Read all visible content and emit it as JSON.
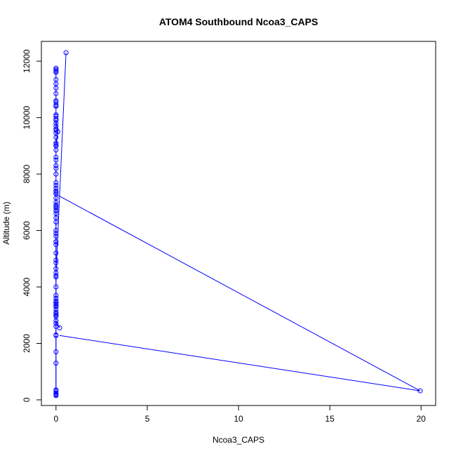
{
  "chart_data": {
    "type": "scatter",
    "title": "ATOM4 Southbound Ncoa3_CAPS",
    "xlabel": "Ncoa3_CAPS",
    "ylabel": "Altitude (m)",
    "xlim": [
      -0.8,
      20.8
    ],
    "ylim": [
      -200,
      12700
    ],
    "xticks": [
      0,
      5,
      10,
      15,
      20
    ],
    "yticks": [
      0,
      2000,
      4000,
      6000,
      8000,
      10000,
      12000
    ],
    "grid": false,
    "legend": "none",
    "colors": {
      "series": "#0000ff",
      "axis": "#000000",
      "background": "#ffffff"
    },
    "series": [
      {
        "marker": "open-circle",
        "line": true,
        "x": [
          0.0,
          0.0,
          0.0,
          0.0,
          0.0,
          0.0,
          0.0,
          0.0,
          0.0,
          0.0,
          0.0,
          0.0,
          0.0,
          0.0,
          0.0,
          0.0,
          0.0,
          0.0,
          0.0,
          0.0,
          0.0,
          0.0,
          0.0,
          0.0,
          0.0,
          0.0,
          0.2,
          0.0,
          0.0,
          0.0,
          0.0,
          0.0,
          0.0,
          0.0,
          0.0,
          0.0,
          0.0,
          0.0,
          0.0,
          0.0,
          0.0,
          0.0,
          0.0,
          0.0,
          0.0,
          0.0,
          0.0,
          0.0,
          0.0,
          0.0,
          0.0,
          0.0,
          0.0,
          0.0,
          0.0,
          0.0,
          0.0,
          0.0,
          0.0,
          0.0,
          0.0,
          0.0,
          0.0,
          0.0,
          0.0,
          0.0,
          0.0,
          0.0,
          0.0,
          0.0,
          0.0,
          0.0,
          0.0,
          0.0,
          0.0,
          0.0,
          0.0,
          0.0,
          0.0,
          0.0,
          0.0,
          0.0,
          0.0,
          0.0,
          0.0,
          0.0,
          0.1,
          0.0,
          0.0,
          0.0,
          0.0,
          0.0,
          0.0,
          0.55
        ],
        "y": [
          150,
          180,
          200,
          250,
          320,
          350,
          1300,
          1700,
          2280,
          2300,
          2600,
          2800,
          2950,
          3050,
          3100,
          3300,
          3350,
          3400,
          3450,
          3500,
          3600,
          3700,
          3400,
          3200,
          3000,
          2700,
          2550,
          2800,
          3300,
          4000,
          4350,
          4500,
          4650,
          4850,
          4950,
          5200,
          5500,
          5600,
          5800,
          5900,
          6000,
          6300,
          6450,
          6600,
          6700,
          6800,
          6850,
          6900,
          7000,
          7150,
          7300,
          7350,
          7400,
          7500,
          7600,
          8000,
          8200,
          8300,
          8500,
          8850,
          9000,
          9050,
          9100,
          9300,
          9450,
          9550,
          9600,
          9700,
          9800,
          9950,
          10050,
          10100,
          10400,
          10450,
          10550,
          10600,
          10850,
          11050,
          11350,
          11600,
          11700,
          11750,
          11650,
          11200,
          10400,
          9900,
          9500,
          9000,
          8600,
          7700,
          6700,
          5600,
          4400,
          12300
        ],
        "x2": [
          0.0,
          0.0,
          0.0,
          0.0,
          0.0,
          0.0,
          0.0,
          0.0
        ],
        "y2": [
          150,
          2300,
          7300,
          7250,
          5500,
          4900,
          3400,
          2950
        ],
        "x3": [
          19.95,
          0.2
        ],
        "y3": [
          320,
          2280
        ],
        "x4": [
          19.95,
          0.1
        ],
        "y4": [
          320,
          7250
        ]
      }
    ]
  }
}
